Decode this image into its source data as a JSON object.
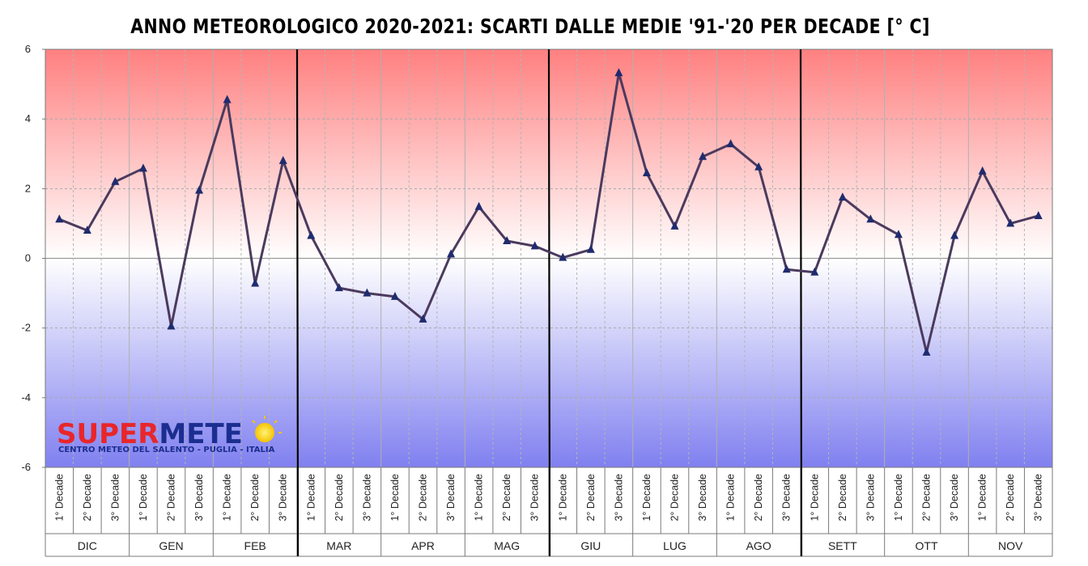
{
  "chart_data": {
    "type": "line",
    "title": "ANNO METEOROLOGICO 2020-2021: SCARTI DALLE MEDIE '91-'20 PER DECADE [° C]",
    "xlabel": "",
    "ylabel": "",
    "ylim": [
      -6,
      6
    ],
    "yticks": [
      6,
      4,
      2,
      0,
      -2,
      -4,
      -6
    ],
    "grid": true,
    "months": [
      "DIC",
      "GEN",
      "FEB",
      "MAR",
      "APR",
      "MAG",
      "GIU",
      "LUG",
      "AGO",
      "SETT",
      "OTT",
      "NOV"
    ],
    "decade_labels": [
      "1° Decade",
      "2° Decade",
      "3° Decade"
    ],
    "season_separators_after_month": [
      3,
      6,
      9
    ],
    "series": [
      {
        "values": [
          1.12,
          0.8,
          2.2,
          2.58,
          -1.95,
          1.95,
          4.55,
          -0.72,
          2.8,
          0.65,
          -0.85,
          -1.0,
          -1.1,
          -1.75,
          0.12,
          1.48,
          0.5,
          0.35,
          0.02,
          0.25,
          5.32,
          2.45,
          0.92,
          2.92,
          3.28,
          2.62,
          -0.32,
          -0.4,
          1.75,
          1.12,
          0.68,
          -2.7,
          0.65,
          2.5,
          1.0,
          1.22
        ],
        "color": "#4b3a5e",
        "marker": "triangle",
        "marker_color": "#1f2b6e"
      }
    ],
    "background": {
      "top_color": "#ff8080",
      "mid_color": "#ffffff",
      "bottom_color": "#8080f0"
    }
  },
  "logo": {
    "brand_a": "SUPER",
    "brand_b": "METE",
    "tagline": "CENTRO METEO DEL SALENTO - PUGLIA - ITALIA"
  }
}
